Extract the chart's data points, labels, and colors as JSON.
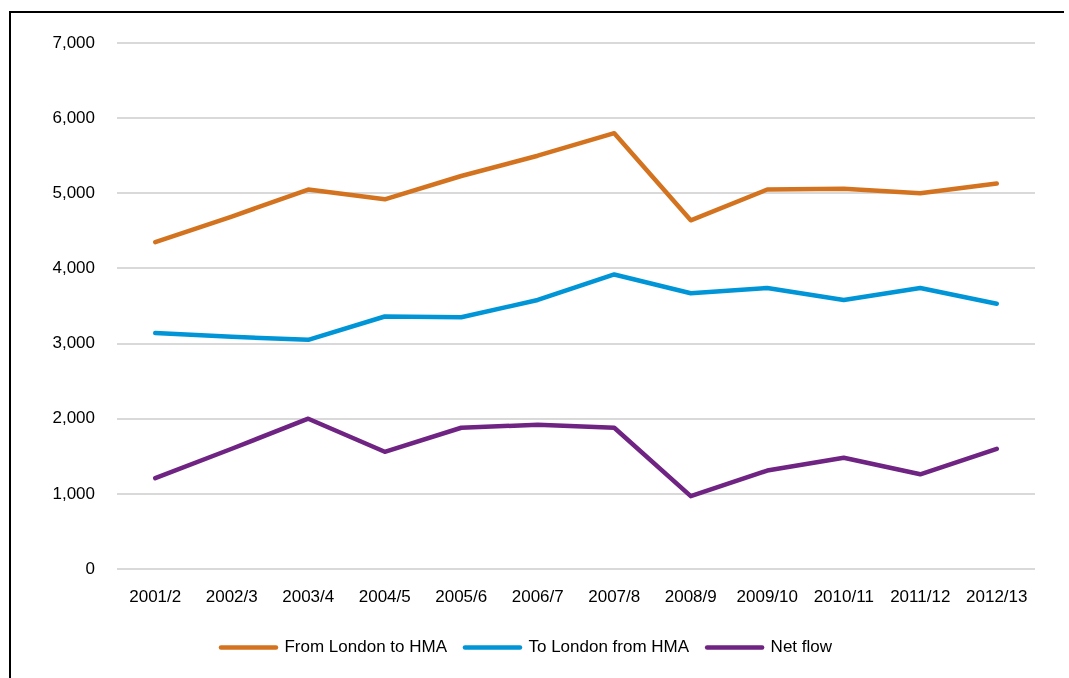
{
  "chart_data": {
    "type": "line",
    "categories": [
      "2001/2",
      "2002/3",
      "2003/4",
      "2004/5",
      "2005/6",
      "2006/7",
      "2007/8",
      "2008/9",
      "2009/10",
      "2010/11",
      "2011/12",
      "2012/13"
    ],
    "series": [
      {
        "name": "From London to HMA",
        "color": "#d4731f",
        "values": [
          4350,
          4690,
          5050,
          4920,
          5230,
          5500,
          5800,
          4640,
          5050,
          5060,
          5000,
          5130
        ]
      },
      {
        "name": "To London from HMA",
        "color": "#0095d6",
        "values": [
          3140,
          3090,
          3050,
          3360,
          3350,
          3580,
          3920,
          3670,
          3740,
          3580,
          3740,
          3530
        ]
      },
      {
        "name": "Net flow",
        "color": "#6f2382",
        "values": [
          1210,
          1600,
          2000,
          1560,
          1880,
          1920,
          1880,
          970,
          1310,
          1480,
          1260,
          1600
        ]
      }
    ],
    "ylim": [
      0,
      7000
    ],
    "yticks": [
      {
        "value": 0,
        "label": "0"
      },
      {
        "value": 1000,
        "label": "1,000"
      },
      {
        "value": 2000,
        "label": "2,000"
      },
      {
        "value": 3000,
        "label": "3,000"
      },
      {
        "value": 4000,
        "label": "4,000"
      },
      {
        "value": 5000,
        "label": "5,000"
      },
      {
        "value": 6000,
        "label": "6,000"
      },
      {
        "value": 7000,
        "label": "7,000"
      }
    ],
    "grid": "y",
    "legend": "bottom",
    "line_style": "solid"
  }
}
